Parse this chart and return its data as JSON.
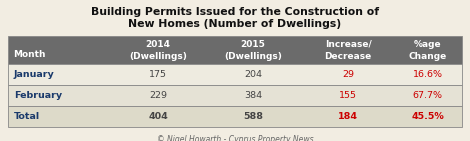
{
  "title_line1": "Building Permits Issued for the Construction of",
  "title_line2": "New Homes (Number of Dwellings)",
  "footer": "© Nigel Howarth - Cyprus Property News",
  "header_bg": "#6b6b6b",
  "header_text_color": "#ffffff",
  "row1_bg": "#eeebe0",
  "row2_bg": "#e5e2d5",
  "total_bg": "#dddac9",
  "bg_color": "#f2ede2",
  "border_color": "#888888",
  "month_color": "#1a3a6b",
  "value_color": "#444444",
  "change_color": "#cc0000",
  "pct_color": "#cc0000",
  "title_color": "#111111",
  "footer_color": "#666666",
  "col_headers_top": [
    "",
    "2014",
    "2015",
    "Increase/",
    "%age"
  ],
  "col_headers_bot": [
    "Month",
    "(Dwellings)",
    "(Dwellings)",
    "Decrease",
    "Change"
  ],
  "rows": [
    {
      "month": "January",
      "v2014": "175",
      "v2015": "204",
      "change": "29",
      "pct": "16.6%",
      "bold": false
    },
    {
      "month": "February",
      "v2014": "229",
      "v2015": "384",
      "change": "155",
      "pct": "67.7%",
      "bold": false
    },
    {
      "month": "Total",
      "v2014": "404",
      "v2015": "588",
      "change": "184",
      "pct": "45.5%",
      "bold": true
    }
  ]
}
